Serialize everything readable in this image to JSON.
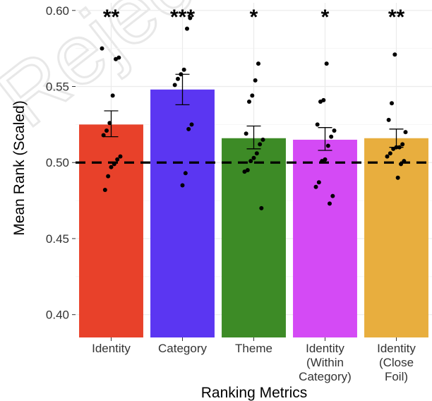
{
  "chart_data": {
    "type": "bar",
    "xlabel": "Ranking Metrics",
    "ylabel": "Mean Rank (Scaled)",
    "ylim": [
      0.385,
      0.605
    ],
    "yticks": [
      "0.40",
      "0.45",
      "0.50",
      "0.55",
      "0.60"
    ],
    "ytick_values": [
      0.4,
      0.45,
      0.5,
      0.55,
      0.6
    ],
    "grid": true,
    "reference_line": 0.5,
    "categories": [
      [
        "Identity"
      ],
      [
        "Category"
      ],
      [
        "Theme"
      ],
      [
        "Identity",
        "(Within",
        "Category)"
      ],
      [
        "Identity",
        "(Close",
        "Foil)"
      ]
    ],
    "values": [
      0.525,
      0.548,
      0.516,
      0.515,
      0.516
    ],
    "error": [
      [
        0.517,
        0.534
      ],
      [
        0.538,
        0.558
      ],
      [
        0.509,
        0.524
      ],
      [
        0.508,
        0.523
      ],
      [
        0.51,
        0.522
      ]
    ],
    "significance": [
      "**",
      "***",
      "*",
      "*",
      "**"
    ],
    "colors": [
      "#e8412a",
      "#5b36f2",
      "#3d8b26",
      "#d44af5",
      "#e8ae3e"
    ],
    "points": [
      [
        0.575,
        0.569,
        0.568,
        0.544,
        0.526,
        0.521,
        0.518,
        0.504,
        0.502,
        0.499,
        0.497,
        0.491,
        0.482
      ],
      [
        0.595,
        0.588,
        0.561,
        0.558,
        0.555,
        0.551,
        0.525,
        0.522,
        0.493,
        0.485
      ],
      [
        0.565,
        0.554,
        0.544,
        0.54,
        0.519,
        0.515,
        0.512,
        0.506,
        0.503,
        0.501,
        0.495,
        0.494,
        0.47
      ],
      [
        0.565,
        0.541,
        0.54,
        0.525,
        0.521,
        0.517,
        0.511,
        0.502,
        0.501,
        0.487,
        0.484,
        0.478,
        0.473
      ],
      [
        0.571,
        0.539,
        0.528,
        0.52,
        0.512,
        0.51,
        0.51,
        0.509,
        0.506,
        0.504,
        0.501,
        0.499,
        0.49
      ]
    ]
  },
  "watermark": "Rejected"
}
